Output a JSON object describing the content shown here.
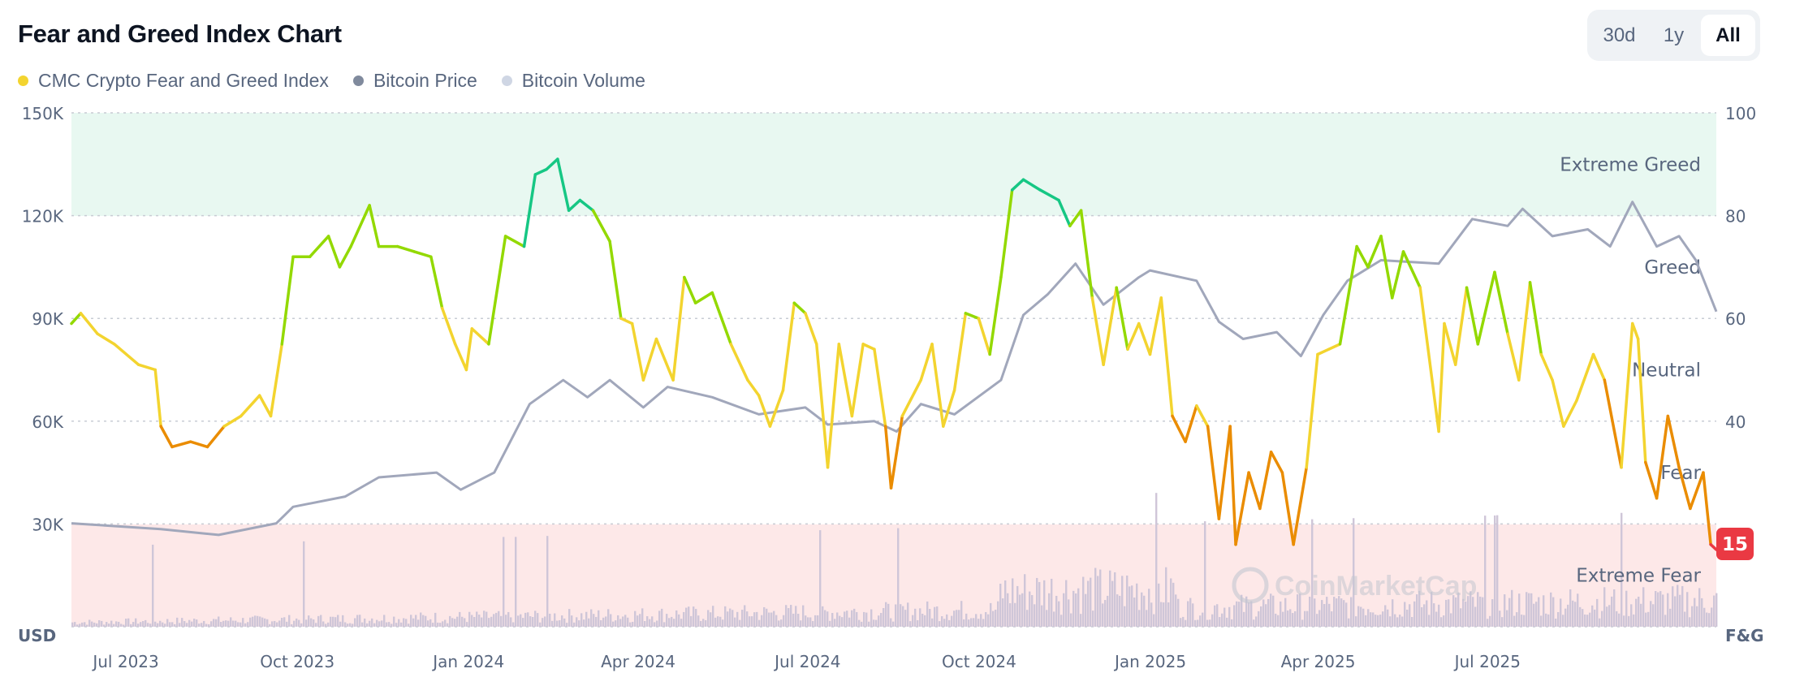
{
  "header": {
    "title": "Fear and Greed Index Chart"
  },
  "range_buttons": [
    {
      "label": "30d",
      "active": false
    },
    {
      "label": "1y",
      "active": false
    },
    {
      "label": "All",
      "active": true
    }
  ],
  "legend": [
    {
      "label": "CMC Crypto Fear and Greed Index",
      "color": "#f3d42f"
    },
    {
      "label": "Bitcoin Price",
      "color": "#808a9d"
    },
    {
      "label": "Bitcoin Volume",
      "color": "#cfd6e4"
    }
  ],
  "watermark": "CoinMarketCap",
  "chart_data": {
    "type": "line",
    "title": "Fear and Greed Index Chart",
    "left_axis": {
      "label": "USD",
      "ticks": [
        "150K",
        "120K",
        "90K",
        "60K",
        "30K"
      ],
      "range": [
        0,
        150000
      ]
    },
    "right_axis": {
      "label": "F&G",
      "ticks": [
        "100",
        "80",
        "60",
        "40"
      ],
      "range": [
        0,
        100
      ]
    },
    "x_ticks": [
      {
        "label": "Jul 2023",
        "date": "2023-07-01"
      },
      {
        "label": "Oct 2023",
        "date": "2023-10-01"
      },
      {
        "label": "Jan 2024",
        "date": "2024-01-01"
      },
      {
        "label": "Apr 2024",
        "date": "2024-04-01"
      },
      {
        "label": "Jul 2024",
        "date": "2024-07-01"
      },
      {
        "label": "Oct 2024",
        "date": "2024-10-01"
      },
      {
        "label": "Jan 2025",
        "date": "2025-01-01"
      },
      {
        "label": "Apr 2025",
        "date": "2025-04-01"
      },
      {
        "label": "Jul 2025",
        "date": "2025-07-01"
      }
    ],
    "x_range": [
      "2023-06-07",
      "2025-11-06"
    ],
    "grid": true,
    "legend_position": "top-left",
    "zones": [
      {
        "label": "Extreme Greed",
        "from": 80,
        "to": 100,
        "color": "#16c784",
        "band": "#e8f8f1"
      },
      {
        "label": "Greed",
        "from": 60,
        "to": 80,
        "color": "#93d900"
      },
      {
        "label": "Neutral",
        "from": 40,
        "to": 60,
        "color": "#f3d42f"
      },
      {
        "label": "Fear",
        "from": 20,
        "to": 40,
        "color": "#ea8c00"
      },
      {
        "label": "Extreme Fear",
        "from": 0,
        "to": 20,
        "color": "#ea3943",
        "band": "#fde8e8"
      }
    ],
    "current_value": "15",
    "series": [
      {
        "name": "CMC Crypto Fear and Greed Index",
        "axis": "right",
        "points": [
          [
            "2023-06-07",
            59
          ],
          [
            "2023-06-12",
            61
          ],
          [
            "2023-06-21",
            57
          ],
          [
            "2023-06-30",
            55
          ],
          [
            "2023-07-13",
            51
          ],
          [
            "2023-07-22",
            50
          ],
          [
            "2023-07-25",
            39
          ],
          [
            "2023-07-31",
            35
          ],
          [
            "2023-08-10",
            36
          ],
          [
            "2023-08-19",
            35
          ],
          [
            "2023-08-28",
            39
          ],
          [
            "2023-09-06",
            41
          ],
          [
            "2023-09-16",
            45
          ],
          [
            "2023-09-22",
            41
          ],
          [
            "2023-09-28",
            55
          ],
          [
            "2023-10-04",
            72
          ],
          [
            "2023-10-13",
            72
          ],
          [
            "2023-10-23",
            76
          ],
          [
            "2023-10-29",
            70
          ],
          [
            "2023-11-04",
            74
          ],
          [
            "2023-11-14",
            82
          ],
          [
            "2023-11-19",
            74
          ],
          [
            "2023-11-29",
            74
          ],
          [
            "2023-12-08",
            73
          ],
          [
            "2023-12-17",
            72
          ],
          [
            "2023-12-23",
            62
          ],
          [
            "2023-12-30",
            55
          ],
          [
            "2024-01-05",
            50
          ],
          [
            "2024-01-08",
            58
          ],
          [
            "2024-01-17",
            55
          ],
          [
            "2024-01-26",
            76
          ],
          [
            "2024-02-05",
            74
          ],
          [
            "2024-02-11",
            88
          ],
          [
            "2024-02-17",
            89
          ],
          [
            "2024-02-23",
            91
          ],
          [
            "2024-02-29",
            81
          ],
          [
            "2024-03-06",
            83
          ],
          [
            "2024-03-13",
            81
          ],
          [
            "2024-03-22",
            75
          ],
          [
            "2024-03-28",
            60
          ],
          [
            "2024-04-03",
            59
          ],
          [
            "2024-04-09",
            48
          ],
          [
            "2024-04-16",
            56
          ],
          [
            "2024-04-25",
            48
          ],
          [
            "2024-05-01",
            68
          ],
          [
            "2024-05-07",
            63
          ],
          [
            "2024-05-16",
            65
          ],
          [
            "2024-05-26",
            55
          ],
          [
            "2024-06-04",
            48
          ],
          [
            "2024-06-10",
            45
          ],
          [
            "2024-06-16",
            39
          ],
          [
            "2024-06-23",
            46
          ],
          [
            "2024-06-29",
            63
          ],
          [
            "2024-07-05",
            61
          ],
          [
            "2024-07-11",
            55
          ],
          [
            "2024-07-17",
            31
          ],
          [
            "2024-07-23",
            55
          ],
          [
            "2024-07-30",
            41
          ],
          [
            "2024-08-05",
            55
          ],
          [
            "2024-08-11",
            54
          ],
          [
            "2024-08-17",
            39
          ],
          [
            "2024-08-20",
            27
          ],
          [
            "2024-08-26",
            41
          ],
          [
            "2024-09-05",
            48
          ],
          [
            "2024-09-11",
            55
          ],
          [
            "2024-09-17",
            39
          ],
          [
            "2024-09-23",
            46
          ],
          [
            "2024-09-29",
            61
          ],
          [
            "2024-10-06",
            60
          ],
          [
            "2024-10-12",
            53
          ],
          [
            "2024-10-18",
            68
          ],
          [
            "2024-10-24",
            85
          ],
          [
            "2024-10-30",
            87
          ],
          [
            "2024-11-08",
            85
          ],
          [
            "2024-11-18",
            83
          ],
          [
            "2024-11-24",
            78
          ],
          [
            "2024-11-30",
            81
          ],
          [
            "2024-12-06",
            64
          ],
          [
            "2024-12-12",
            51
          ],
          [
            "2024-12-19",
            66
          ],
          [
            "2024-12-25",
            54
          ],
          [
            "2024-12-31",
            59
          ],
          [
            "2025-01-06",
            53
          ],
          [
            "2025-01-12",
            64
          ],
          [
            "2025-01-18",
            41
          ],
          [
            "2025-01-25",
            36
          ],
          [
            "2025-01-31",
            43
          ],
          [
            "2025-02-06",
            39
          ],
          [
            "2025-02-12",
            21
          ],
          [
            "2025-02-18",
            39
          ],
          [
            "2025-02-21",
            16
          ],
          [
            "2025-02-28",
            30
          ],
          [
            "2025-03-06",
            23
          ],
          [
            "2025-03-12",
            34
          ],
          [
            "2025-03-18",
            30
          ],
          [
            "2025-03-24",
            16
          ],
          [
            "2025-03-31",
            31
          ],
          [
            "2025-04-06",
            53
          ],
          [
            "2025-04-12",
            54
          ],
          [
            "2025-04-18",
            55
          ],
          [
            "2025-04-27",
            74
          ],
          [
            "2025-05-03",
            70
          ],
          [
            "2025-05-10",
            76
          ],
          [
            "2025-05-16",
            64
          ],
          [
            "2025-05-22",
            73
          ],
          [
            "2025-05-31",
            66
          ],
          [
            "2025-06-10",
            38
          ],
          [
            "2025-06-13",
            59
          ],
          [
            "2025-06-19",
            51
          ],
          [
            "2025-06-25",
            66
          ],
          [
            "2025-07-01",
            55
          ],
          [
            "2025-07-10",
            69
          ],
          [
            "2025-07-17",
            57
          ],
          [
            "2025-07-23",
            48
          ],
          [
            "2025-07-29",
            67
          ],
          [
            "2025-08-04",
            53
          ],
          [
            "2025-08-10",
            48
          ],
          [
            "2025-08-16",
            39
          ],
          [
            "2025-08-23",
            44
          ],
          [
            "2025-09-01",
            53
          ],
          [
            "2025-09-07",
            48
          ],
          [
            "2025-09-16",
            31
          ],
          [
            "2025-09-22",
            59
          ],
          [
            "2025-09-25",
            56
          ],
          [
            "2025-09-29",
            32
          ],
          [
            "2025-10-05",
            25
          ],
          [
            "2025-10-11",
            41
          ],
          [
            "2025-10-17",
            31
          ],
          [
            "2025-10-23",
            23
          ],
          [
            "2025-10-30",
            30
          ],
          [
            "2025-11-03",
            16
          ],
          [
            "2025-11-06",
            15
          ]
        ]
      },
      {
        "name": "Bitcoin Price",
        "axis": "left",
        "color": "#a1a7bb",
        "points": [
          [
            "2023-06-07",
            30200
          ],
          [
            "2023-07-25",
            28500
          ],
          [
            "2023-08-25",
            26800
          ],
          [
            "2023-09-25",
            30200
          ],
          [
            "2023-10-04",
            35000
          ],
          [
            "2023-11-01",
            38000
          ],
          [
            "2023-11-19",
            43600
          ],
          [
            "2023-12-20",
            45000
          ],
          [
            "2024-01-02",
            40000
          ],
          [
            "2024-01-20",
            45000
          ],
          [
            "2024-02-08",
            65000
          ],
          [
            "2024-02-26",
            72000
          ],
          [
            "2024-03-10",
            67000
          ],
          [
            "2024-03-22",
            72000
          ],
          [
            "2024-04-09",
            64000
          ],
          [
            "2024-04-22",
            70000
          ],
          [
            "2024-05-16",
            67000
          ],
          [
            "2024-06-10",
            62000
          ],
          [
            "2024-07-05",
            64000
          ],
          [
            "2024-07-17",
            59000
          ],
          [
            "2024-08-11",
            60000
          ],
          [
            "2024-08-23",
            57000
          ],
          [
            "2024-09-05",
            65000
          ],
          [
            "2024-09-23",
            62000
          ],
          [
            "2024-10-18",
            72000
          ],
          [
            "2024-10-30",
            91000
          ],
          [
            "2024-11-12",
            97000
          ],
          [
            "2024-11-27",
            106000
          ],
          [
            "2024-12-12",
            94000
          ],
          [
            "2024-12-31",
            102000
          ],
          [
            "2025-01-06",
            104000
          ],
          [
            "2025-01-31",
            101000
          ],
          [
            "2025-02-12",
            89000
          ],
          [
            "2025-02-25",
            84000
          ],
          [
            "2025-03-15",
            86000
          ],
          [
            "2025-03-28",
            79000
          ],
          [
            "2025-04-09",
            91000
          ],
          [
            "2025-04-22",
            101000
          ],
          [
            "2025-05-10",
            107000
          ],
          [
            "2025-06-10",
            106000
          ],
          [
            "2025-06-28",
            119000
          ],
          [
            "2025-07-17",
            117000
          ],
          [
            "2025-07-25",
            122000
          ],
          [
            "2025-08-10",
            114000
          ],
          [
            "2025-08-29",
            116000
          ],
          [
            "2025-09-10",
            111000
          ],
          [
            "2025-09-22",
            124000
          ],
          [
            "2025-10-05",
            111000
          ],
          [
            "2025-10-17",
            114000
          ],
          [
            "2025-10-26",
            107000
          ],
          [
            "2025-11-06",
            92000
          ]
        ]
      },
      {
        "name": "Bitcoin Volume",
        "axis": "left",
        "color": "#cfc6d8"
      }
    ]
  }
}
